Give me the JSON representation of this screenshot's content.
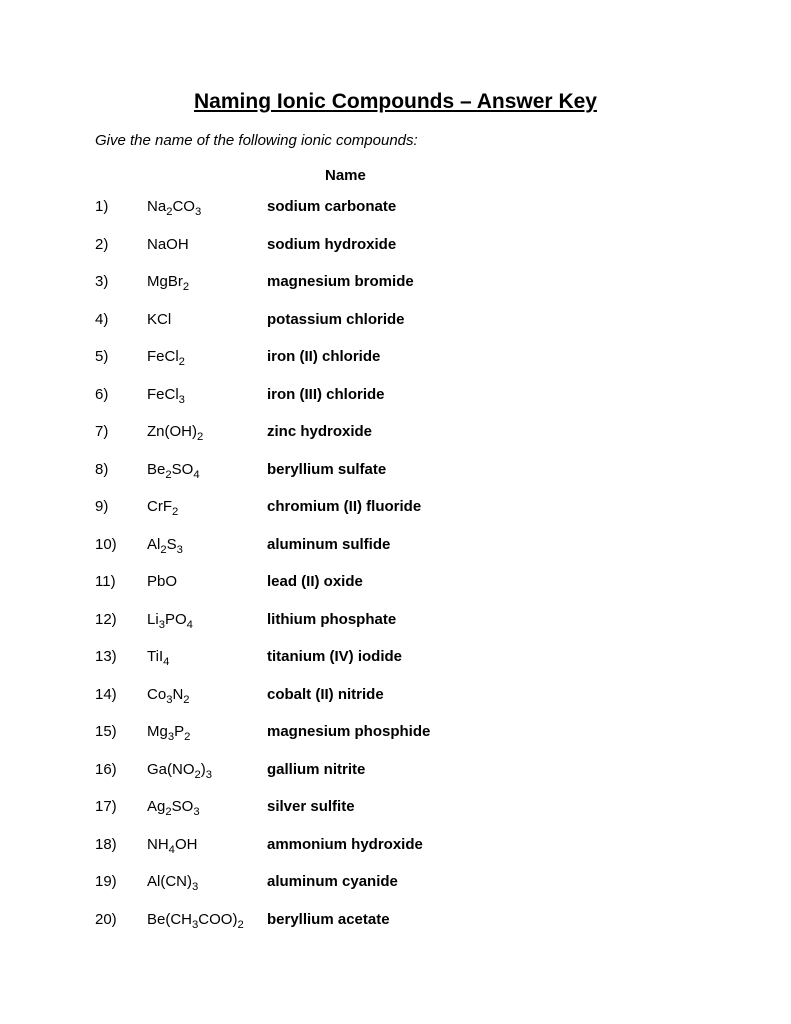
{
  "title": "Naming Ionic Compounds – Answer Key",
  "instruction": "Give the name of the following ionic compounds:",
  "columnHeader": "Name",
  "rows": [
    {
      "num": "1)",
      "formula": "Na<sub>2</sub>CO<sub>3</sub>",
      "name": "sodium carbonate"
    },
    {
      "num": "2)",
      "formula": "NaOH",
      "name": "sodium hydroxide"
    },
    {
      "num": "3)",
      "formula": "MgBr<sub>2</sub>",
      "name": "magnesium bromide"
    },
    {
      "num": "4)",
      "formula": "KCl",
      "name": "potassium chloride"
    },
    {
      "num": "5)",
      "formula": "FeCl<sub>2</sub>",
      "name": "iron (II) chloride"
    },
    {
      "num": "6)",
      "formula": "FeCl<sub>3</sub>",
      "name": "iron (III) chloride"
    },
    {
      "num": "7)",
      "formula": "Zn(OH)<sub>2</sub>",
      "name": "zinc hydroxide"
    },
    {
      "num": "8)",
      "formula": "Be<sub>2</sub>SO<sub>4</sub>",
      "name": "beryllium sulfate"
    },
    {
      "num": "9)",
      "formula": "CrF<sub>2</sub>",
      "name": "chromium (II) fluoride"
    },
    {
      "num": "10)",
      "formula": "Al<sub>2</sub>S<sub>3</sub>",
      "name": "aluminum sulfide"
    },
    {
      "num": "11)",
      "formula": "PbO",
      "name": "lead (II) oxide"
    },
    {
      "num": "12)",
      "formula": "Li<sub>3</sub>PO<sub>4</sub>",
      "name": "lithium phosphate"
    },
    {
      "num": "13)",
      "formula": "TiI<sub>4</sub>",
      "name": "titanium (IV) iodide"
    },
    {
      "num": "14)",
      "formula": "Co<sub>3</sub>N<sub>2</sub>",
      "name": "cobalt (II) nitride"
    },
    {
      "num": "15)",
      "formula": "Mg<sub>3</sub>P<sub>2</sub>",
      "name": "magnesium phosphide"
    },
    {
      "num": "16)",
      "formula": "Ga(NO<sub>2</sub>)<sub>3</sub>",
      "name": "gallium nitrite"
    },
    {
      "num": "17)",
      "formula": "Ag<sub>2</sub>SO<sub>3</sub>",
      "name": "silver sulfite"
    },
    {
      "num": "18)",
      "formula": "NH<sub>4</sub>OH",
      "name": "ammonium hydroxide"
    },
    {
      "num": "19)",
      "formula": "Al(CN)<sub>3</sub>",
      "name": "aluminum cyanide"
    },
    {
      "num": "20)",
      "formula": "Be(CH<sub>3</sub>COO)<sub>2</sub>",
      "name": "beryllium acetate"
    }
  ],
  "colors": {
    "background": "#ffffff",
    "text": "#000000"
  },
  "typography": {
    "fontFamily": "Arial, Helvetica, sans-serif",
    "titleFontSize": 21,
    "bodyFontSize": 15
  }
}
